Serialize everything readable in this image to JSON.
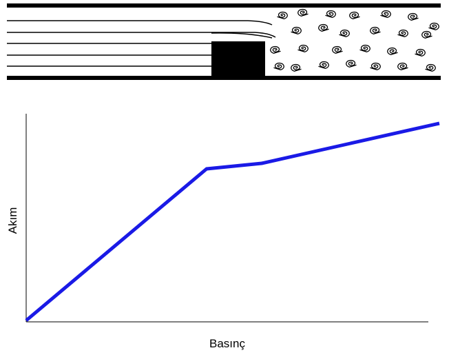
{
  "diagram": {
    "y_axis_label": "Akım",
    "x_axis_label": "Basınç"
  }
}
